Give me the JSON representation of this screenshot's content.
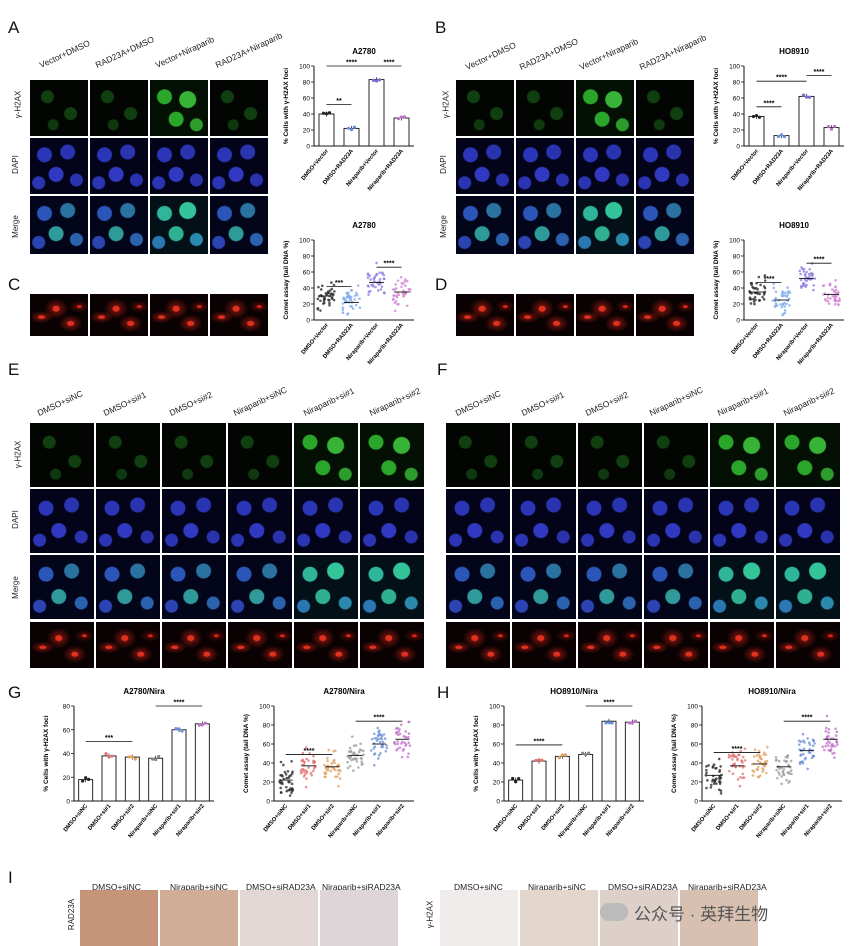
{
  "panel_labels": [
    "A",
    "B",
    "C",
    "D",
    "E",
    "F",
    "G",
    "H",
    "I"
  ],
  "A": {
    "columns": [
      "Vector+DMSO",
      "RAD23A+DMSO",
      "Vector+Niraparib",
      "RAD23A+Niraparib"
    ],
    "rows": [
      "γ-H2AX",
      "DAPI",
      "Merge"
    ]
  },
  "B": {
    "columns": [
      "Vector+DMSO",
      "RAD23A+DMSO",
      "Vector+Niraparib",
      "RAD23A+Niraparib"
    ],
    "rows": [
      "γ-H2AX",
      "DAPI",
      "Merge"
    ]
  },
  "E": {
    "columns": [
      "DMSO+siNC",
      "DMSO+si#1",
      "DMSO+si#2",
      "Niraparib+siNC",
      "Niraparib+si#1",
      "Niraparib+si#2"
    ],
    "rows": [
      "γ-H2AX",
      "DAPI",
      "Merge"
    ]
  },
  "F": {
    "columns": [
      "DMSO+siNC",
      "DMSO+si#1",
      "DMSO+si#2",
      "Niraparib+siNC",
      "Niraparib+si#1",
      "Niraparib+si#2"
    ]
  },
  "I": {
    "left_columns": [
      "DMSO+siNC",
      "Niraparib+siNC",
      "DMSO+siRAD23A",
      "Niraparib+siRAD23A"
    ],
    "left_row": "RAD23A",
    "right_columns": [
      "DMSO+siNC",
      "Niraparib+siNC",
      "DMSO+siRAD23A",
      "Niraparib+siRAD23A"
    ],
    "right_row": "γ-H2AX"
  },
  "watermark": "公众号 · 英拜生物",
  "chart_data": [
    {
      "id": "A-foci",
      "type": "bar",
      "title": "A2780",
      "ylabel": "% Cells with γ-H2AX foci",
      "ylim": [
        0,
        100
      ],
      "yticks": [
        0,
        20,
        40,
        60,
        80,
        100
      ],
      "categories": [
        "DMSO+Vector",
        "DMSO+RAD23A",
        "Niraparib+Vector",
        "Niraparib+RAD23A"
      ],
      "values": [
        40,
        22,
        83,
        35
      ],
      "colors": [
        "#222222",
        "#6a8fd8",
        "#7a6fd0",
        "#c070c8"
      ],
      "significance": [
        {
          "from": 0,
          "to": 1,
          "label": "**"
        },
        {
          "from": 0,
          "to": 2,
          "label": "****"
        },
        {
          "from": 2,
          "to": 3,
          "label": "****"
        }
      ]
    },
    {
      "id": "A-comet",
      "type": "scatter",
      "title": "A2780",
      "ylabel": "Comet assay (tail DNA %)",
      "ylim": [
        0,
        100
      ],
      "yticks": [
        0,
        20,
        40,
        60,
        80,
        100
      ],
      "categories": [
        "DMSO+Vector",
        "DMSO+RAD23A",
        "Niraparib+Vector",
        "Niraparib+RAD23A"
      ],
      "means": [
        30,
        22,
        47,
        35
      ],
      "colors": [
        "#222222",
        "#7aa8e8",
        "#8a7ae0",
        "#d080d0"
      ],
      "significance": [
        {
          "from": 0,
          "to": 1,
          "label": "***"
        },
        {
          "from": 2,
          "to": 3,
          "label": "****"
        }
      ]
    },
    {
      "id": "B-foci",
      "type": "bar",
      "title": "HO8910",
      "ylabel": "% Cells with γ-H2AX foci",
      "ylim": [
        0,
        100
      ],
      "yticks": [
        0,
        20,
        40,
        60,
        80,
        100
      ],
      "categories": [
        "DMSO+Vector",
        "DMSO+RAD23A",
        "Niraparib+Vector",
        "Niraparib+RAD23A"
      ],
      "values": [
        37,
        13,
        62,
        23
      ],
      "colors": [
        "#222222",
        "#6a8fd8",
        "#7a6fd0",
        "#c070c8"
      ],
      "significance": [
        {
          "from": 0,
          "to": 1,
          "label": "****"
        },
        {
          "from": 0,
          "to": 2,
          "label": "****"
        },
        {
          "from": 2,
          "to": 3,
          "label": "****"
        }
      ]
    },
    {
      "id": "B-comet",
      "type": "scatter",
      "title": "HO8910",
      "ylabel": "Comet assay (tail DNA %)",
      "ylim": [
        0,
        100
      ],
      "yticks": [
        0,
        20,
        40,
        60,
        80,
        100
      ],
      "categories": [
        "DMSO+Vector",
        "DMSO+RAD23A",
        "Niraparib+Vector",
        "Niraparib+RAD23A"
      ],
      "means": [
        35,
        25,
        52,
        32
      ],
      "colors": [
        "#222222",
        "#7aa8e8",
        "#8a7ae0",
        "#d080d0"
      ],
      "significance": [
        {
          "from": 0,
          "to": 1,
          "label": "****"
        },
        {
          "from": 2,
          "to": 3,
          "label": "****"
        }
      ]
    },
    {
      "id": "G-foci",
      "type": "bar",
      "title": "A2780/Nira",
      "ylabel": "% Cells with γ-H2AX foci",
      "ylim": [
        0,
        80
      ],
      "yticks": [
        0,
        20,
        40,
        60,
        80
      ],
      "categories": [
        "DMSO+siNC",
        "DMSO+si#1",
        "DMSO+si#2",
        "Niraparib+siNC",
        "Niraparib+si#1",
        "Niraparib+si#2"
      ],
      "values": [
        18,
        38,
        37,
        36,
        60,
        65
      ],
      "colors": [
        "#222222",
        "#e07070",
        "#e0a060",
        "#888888",
        "#6a8fd8",
        "#c070c8"
      ],
      "significance": [
        {
          "from": 0,
          "to": 2,
          "label": "***"
        },
        {
          "from": 3,
          "to": 5,
          "label": "****"
        }
      ]
    },
    {
      "id": "G-comet",
      "type": "scatter",
      "title": "A2780/Nira",
      "ylabel": "Comet assay (tail DNA %)",
      "ylim": [
        0,
        100
      ],
      "yticks": [
        0,
        20,
        40,
        60,
        80,
        100
      ],
      "categories": [
        "DMSO+siNC",
        "DMSO+si#1",
        "DMSO+si#2",
        "Niraparib+siNC",
        "Niraparib+si#1",
        "Niraparib+si#2"
      ],
      "means": [
        22,
        37,
        36,
        48,
        60,
        65
      ],
      "colors": [
        "#222222",
        "#e07070",
        "#e0a060",
        "#999999",
        "#6a8fd8",
        "#c070c8"
      ],
      "significance": [
        {
          "from": 0,
          "to": 2,
          "label": "****"
        },
        {
          "from": 3,
          "to": 5,
          "label": "****"
        }
      ]
    },
    {
      "id": "H-foci",
      "type": "bar",
      "title": "HO8910/Nira",
      "ylabel": "% Cells with γ-H2AX foci",
      "ylim": [
        0,
        100
      ],
      "yticks": [
        0,
        20,
        40,
        60,
        80,
        100
      ],
      "categories": [
        "DMSO+siNC",
        "DMSO+si#1",
        "DMSO+si#2",
        "Niraparib+siNC",
        "Niraparib+si#1",
        "Niraparib+si#2"
      ],
      "values": [
        22,
        42,
        47,
        49,
        84,
        83
      ],
      "colors": [
        "#222222",
        "#e07070",
        "#e0a060",
        "#888888",
        "#6a8fd8",
        "#c070c8"
      ],
      "significance": [
        {
          "from": 0,
          "to": 2,
          "label": "****"
        },
        {
          "from": 3,
          "to": 5,
          "label": "****"
        }
      ]
    },
    {
      "id": "H-comet",
      "type": "scatter",
      "title": "HO8910/Nira",
      "ylabel": "Comet assay (tail DNA %)",
      "ylim": [
        0,
        100
      ],
      "yticks": [
        0,
        20,
        40,
        60,
        80,
        100
      ],
      "categories": [
        "DMSO+siNC",
        "DMSO+si#1",
        "DMSO+si#2",
        "Niraparib+siNC",
        "Niraparib+si#1",
        "Niraparib+si#2"
      ],
      "means": [
        27,
        37,
        39,
        36,
        53,
        65
      ],
      "colors": [
        "#222222",
        "#e07070",
        "#e0a060",
        "#999999",
        "#6a8fd8",
        "#c070c8"
      ],
      "significance": [
        {
          "from": 0,
          "to": 2,
          "label": "****"
        },
        {
          "from": 3,
          "to": 5,
          "label": "****"
        }
      ]
    }
  ]
}
